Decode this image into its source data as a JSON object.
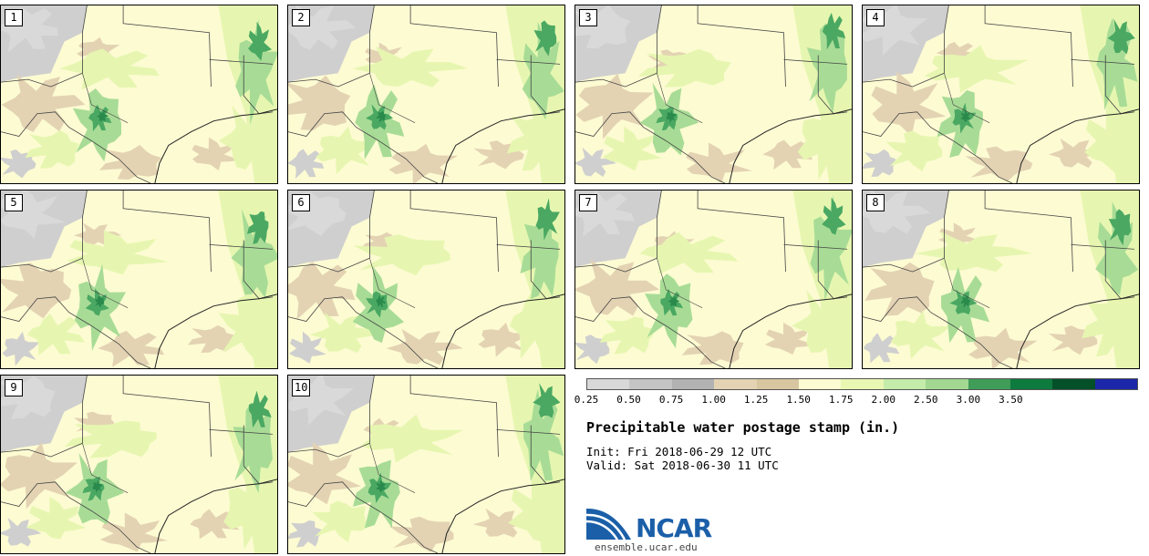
{
  "panels": [
    "1",
    "2",
    "3",
    "4",
    "5",
    "6",
    "7",
    "8",
    "9",
    "10"
  ],
  "colorbar": {
    "ticks": [
      "0.25",
      "0.50",
      "0.75",
      "1.00",
      "1.25",
      "1.50",
      "1.75",
      "2.00",
      "2.50",
      "3.00",
      "3.50"
    ],
    "colors": [
      "#d8d8d8",
      "#c4c4c4",
      "#b2b2b2",
      "#e3d3b3",
      "#d8c6a1",
      "#fdfbd2",
      "#e9f7b3",
      "#c4ecaa",
      "#a2d892",
      "#3f9d59",
      "#0d7a3e",
      "#045029",
      "#1c26a8"
    ]
  },
  "title": "Precipitable water postage stamp (in.)",
  "init": "Init: Fri 2018-06-29 12 UTC",
  "valid": "Valid: Sat 2018-06-30 11 UTC",
  "logo": {
    "text": "NCAR",
    "website": "ensemble.ucar.edu"
  },
  "map_colors": {
    "base": "#fdfbd2",
    "gray": "#cfcfcf",
    "tan": "#e3d3b3",
    "light_green": "#e6f6b0",
    "mid_green": "#a8dc96",
    "dark_green": "#4aa862",
    "darkest_green": "#2a8a4c",
    "boundary": "#444444"
  }
}
